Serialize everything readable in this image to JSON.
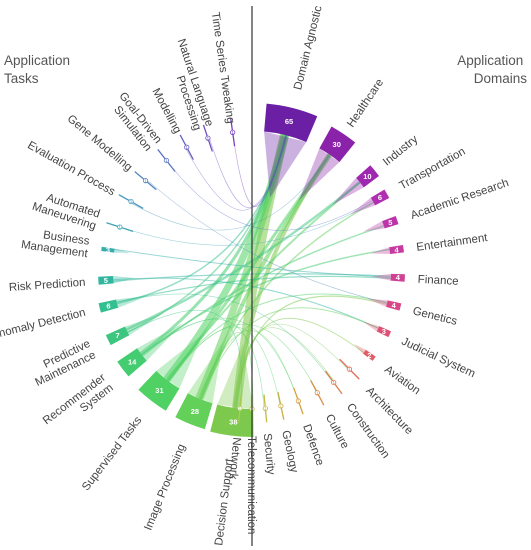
{
  "headings": {
    "tasks": [
      "Application",
      "Tasks"
    ],
    "domains": [
      "Application",
      "Domains"
    ]
  },
  "tasks": [
    {
      "label": [
        "Time Series Tweaking"
      ],
      "count": "1",
      "color": "#7a3fc0"
    },
    {
      "label": [
        "Natural Language",
        "Processing"
      ],
      "count": "1",
      "color": "#6f4fc2"
    },
    {
      "label": [
        "Modelling"
      ],
      "count": "1",
      "color": "#6660c4"
    },
    {
      "label": [
        "Goal-Driven",
        "Simulation"
      ],
      "count": "1",
      "color": "#5c74c4"
    },
    {
      "label": [
        "Gene Modelling"
      ],
      "count": "1",
      "color": "#5186c2"
    },
    {
      "label": [
        "Evaluation Process"
      ],
      "count": "1",
      "color": "#4796be"
    },
    {
      "label": [
        "Automated",
        "Maneuvering"
      ],
      "count": "1",
      "color": "#3ea4b6"
    },
    {
      "label": [
        "Business",
        "Management"
      ],
      "count": "3",
      "color": "#36afac"
    },
    {
      "label": [
        "Risk Prediction"
      ],
      "count": "5",
      "color": "#31b7a0"
    },
    {
      "label": [
        "Anomaly Detection"
      ],
      "count": "6",
      "color": "#33c090"
    },
    {
      "label": [
        "Predictive",
        "Maintenance"
      ],
      "count": "7",
      "color": "#3cc680"
    },
    {
      "label": [
        "Recommender",
        "System"
      ],
      "count": "14",
      "color": "#44cc70"
    },
    {
      "label": [
        "Supervised Tasks"
      ],
      "count": "31",
      "color": "#4fd163"
    },
    {
      "label": [
        "Image Processing"
      ],
      "count": "28",
      "color": "#63d05a"
    },
    {
      "label": [
        "Decision Support"
      ],
      "count": "38",
      "color": "#7dc94e"
    }
  ],
  "domains": [
    {
      "label": [
        "Domain Agnostic"
      ],
      "count": "65",
      "color": "#6a1fa4"
    },
    {
      "label": [
        "Healthcare"
      ],
      "count": "30",
      "color": "#8a22aa"
    },
    {
      "label": [
        "Industry"
      ],
      "count": "10",
      "color": "#9f28b0"
    },
    {
      "label": [
        "Transportation"
      ],
      "count": "6",
      "color": "#b02eb0"
    },
    {
      "label": [
        "Academic Research"
      ],
      "count": "5",
      "color": "#bc34aa"
    },
    {
      "label": [
        "Entertainment"
      ],
      "count": "4",
      "color": "#c63aa0"
    },
    {
      "label": [
        "Finance"
      ],
      "count": "4",
      "color": "#d04194"
    },
    {
      "label": [
        "Genetics"
      ],
      "count": "4",
      "color": "#d84886"
    },
    {
      "label": [
        "Judicial System"
      ],
      "count": "3",
      "color": "#de5176"
    },
    {
      "label": [
        "Aviation"
      ],
      "count": "2",
      "color": "#e15d66"
    },
    {
      "label": [
        "Architecture"
      ],
      "count": "1",
      "color": "#e16c58"
    },
    {
      "label": [
        "Construction"
      ],
      "count": "1",
      "color": "#df7d4c"
    },
    {
      "label": [
        "Culture"
      ],
      "count": "1",
      "color": "#da8e44"
    },
    {
      "label": [
        "Defence"
      ],
      "count": "1",
      "color": "#d49f40"
    },
    {
      "label": [
        "Geology"
      ],
      "count": "1",
      "color": "#cbae40"
    },
    {
      "label": [
        "Security"
      ],
      "count": "1",
      "color": "#c2bb44"
    },
    {
      "label": [
        "Telecommunication"
      ],
      "count": "1",
      "color": "#b6c44a"
    },
    {
      "label": [
        "Network"
      ],
      "count": "1",
      "color": "#a8ca50"
    }
  ]
}
